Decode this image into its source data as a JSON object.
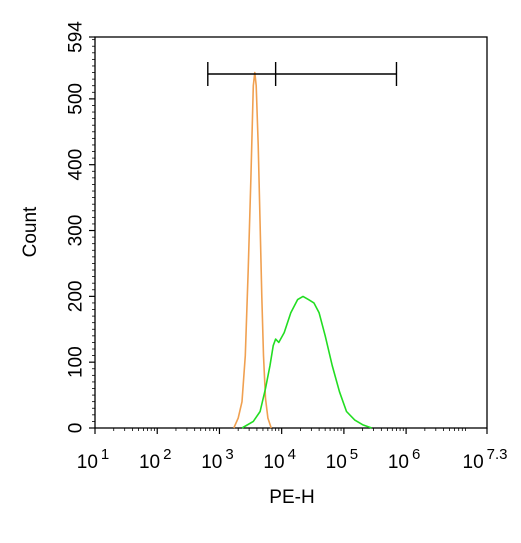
{
  "chart_data": {
    "type": "histogram",
    "xlabel": "PE-H",
    "ylabel": "Count",
    "x_scale": "log10",
    "xlim_log10": [
      1,
      7.3
    ],
    "ylim": [
      0,
      594
    ],
    "y_ticks": [
      {
        "value": 0,
        "label": "0"
      },
      {
        "value": 100,
        "label": "100"
      },
      {
        "value": 200,
        "label": "200"
      },
      {
        "value": 300,
        "label": "300"
      },
      {
        "value": 400,
        "label": "400"
      },
      {
        "value": 500,
        "label": "500"
      },
      {
        "value": 594,
        "label": "594"
      }
    ],
    "x_ticks": [
      {
        "exp": 1,
        "base": "10",
        "sup": "1"
      },
      {
        "exp": 2,
        "base": "10",
        "sup": "2"
      },
      {
        "exp": 3,
        "base": "10",
        "sup": "3"
      },
      {
        "exp": 4,
        "base": "10",
        "sup": "4"
      },
      {
        "exp": 5,
        "base": "10",
        "sup": "5"
      },
      {
        "exp": 6,
        "base": "10",
        "sup": "6"
      },
      {
        "exp": 7.3,
        "base": "10",
        "sup": "7.3"
      }
    ],
    "gate": {
      "x_start": 650,
      "x_mid": 8000,
      "x_end": 700000
    },
    "series": [
      {
        "color": "#f0a050",
        "points": [
          [
            1700,
            0
          ],
          [
            2000,
            15
          ],
          [
            2300,
            40
          ],
          [
            2600,
            110
          ],
          [
            2900,
            240
          ],
          [
            3200,
            380
          ],
          [
            3500,
            520
          ],
          [
            3700,
            540
          ],
          [
            3900,
            520
          ],
          [
            4200,
            430
          ],
          [
            4500,
            310
          ],
          [
            4800,
            200
          ],
          [
            5100,
            110
          ],
          [
            5500,
            45
          ],
          [
            6000,
            15
          ],
          [
            6800,
            0
          ]
        ]
      },
      {
        "color": "#22dd22",
        "points": [
          [
            2300,
            0
          ],
          [
            3500,
            10
          ],
          [
            4500,
            25
          ],
          [
            5500,
            60
          ],
          [
            6500,
            95
          ],
          [
            7300,
            125
          ],
          [
            8000,
            135
          ],
          [
            9000,
            130
          ],
          [
            11000,
            145
          ],
          [
            14000,
            175
          ],
          [
            18000,
            195
          ],
          [
            22000,
            200
          ],
          [
            27000,
            195
          ],
          [
            33000,
            190
          ],
          [
            40000,
            175
          ],
          [
            50000,
            140
          ],
          [
            65000,
            95
          ],
          [
            85000,
            55
          ],
          [
            110000,
            25
          ],
          [
            150000,
            12
          ],
          [
            200000,
            5
          ],
          [
            280000,
            0
          ]
        ]
      }
    ]
  }
}
